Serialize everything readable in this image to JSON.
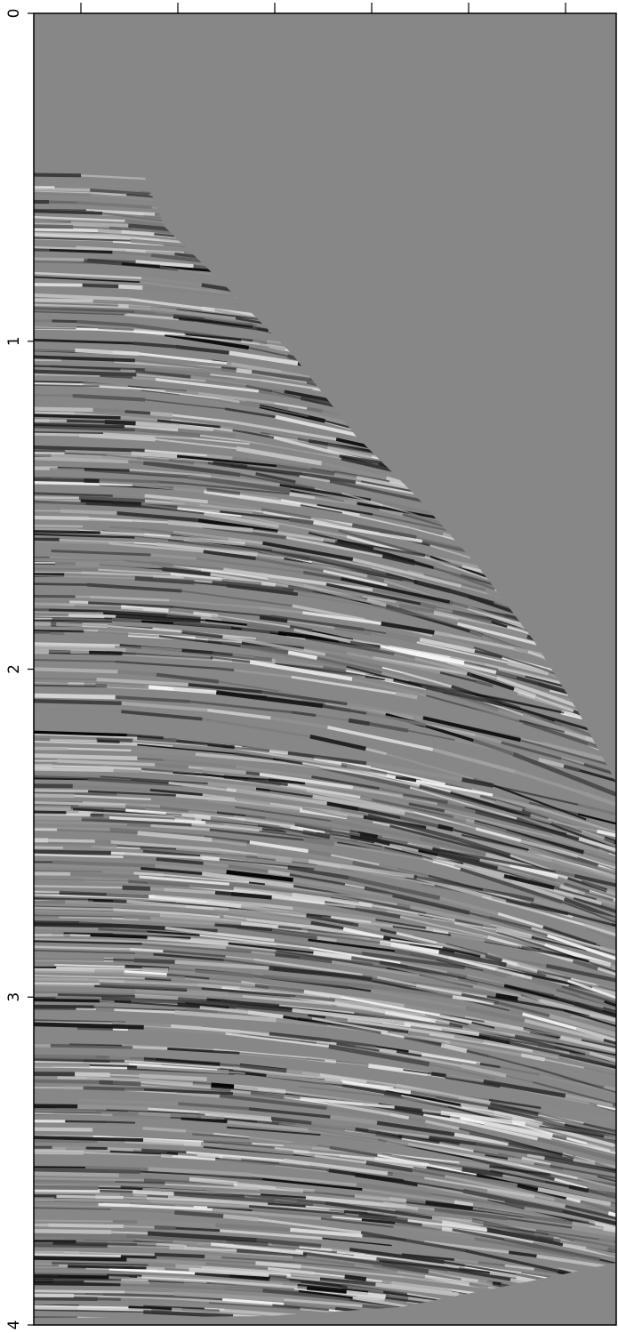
{
  "chart_data": {
    "type": "image",
    "ylim": [
      0,
      4
    ],
    "yticks": [
      0,
      1,
      2,
      3,
      4
    ],
    "y_inverted": true
  }
}
